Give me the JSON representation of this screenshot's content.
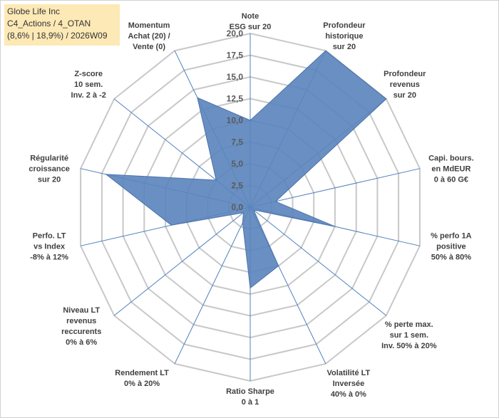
{
  "info": {
    "company": "Globe Life Inc",
    "portfolio": "C4_Actions / 4_OTAN",
    "stats": "(8,6% | 18,9%) / 2026W09"
  },
  "chart_data": {
    "type": "radar",
    "rmax": 20,
    "ticks": [
      "0,0",
      "2,5",
      "5,0",
      "7,5",
      "10,0",
      "12,5",
      "15,0",
      "17,5",
      "20,0"
    ],
    "axes": [
      {
        "label": [
          "Note",
          "ESG sur 20"
        ],
        "value": 10.0
      },
      {
        "label": [
          "Profondeur",
          "historique",
          "sur 20"
        ],
        "value": 20.0
      },
      {
        "label": [
          "Profondeur",
          "revenus",
          "sur 20"
        ],
        "value": 20.0
      },
      {
        "label": [
          "Capi. bours.",
          "en MdEUR",
          "0 à 60 G€"
        ],
        "value": 3.0
      },
      {
        "label": [
          "% perfo 1A",
          "positive",
          "50% à 80%"
        ],
        "value": 10.0
      },
      {
        "label": [
          "% perte max.",
          "sur 1 sem.",
          "Inv. 50% à 20%"
        ],
        "value": 0.5
      },
      {
        "label": [
          "Volatilité LT",
          "Inversée",
          "40% à 0%"
        ],
        "value": 7.5
      },
      {
        "label": [
          "Ratio Sharpe",
          "0 à 1"
        ],
        "value": 9.3
      },
      {
        "label": [
          "Rendement LT",
          "0% à 20%"
        ],
        "value": 2.0
      },
      {
        "label": [
          "Niveau LT",
          "revenus",
          "reccurents",
          "0% à 6%"
        ],
        "value": 1.0
      },
      {
        "label": [
          "Perfo. LT",
          "vs Index",
          "-8% à 12%"
        ],
        "value": 9.3
      },
      {
        "label": [
          "Régularité",
          "croissance",
          "sur 20"
        ],
        "value": 17.0
      },
      {
        "label": [
          "Z-score",
          "10 sem.",
          "Inv. 2 à -2"
        ],
        "value": 5.0
      },
      {
        "label": [
          "Momentum",
          "Achat (20) /",
          "Vente (0)"
        ],
        "value": 14.0
      }
    ],
    "colors": {
      "fill": "#5a84bd",
      "stroke": "#4a72a8",
      "grid": "#c8c8c8",
      "axis": "#4f81bd"
    }
  }
}
